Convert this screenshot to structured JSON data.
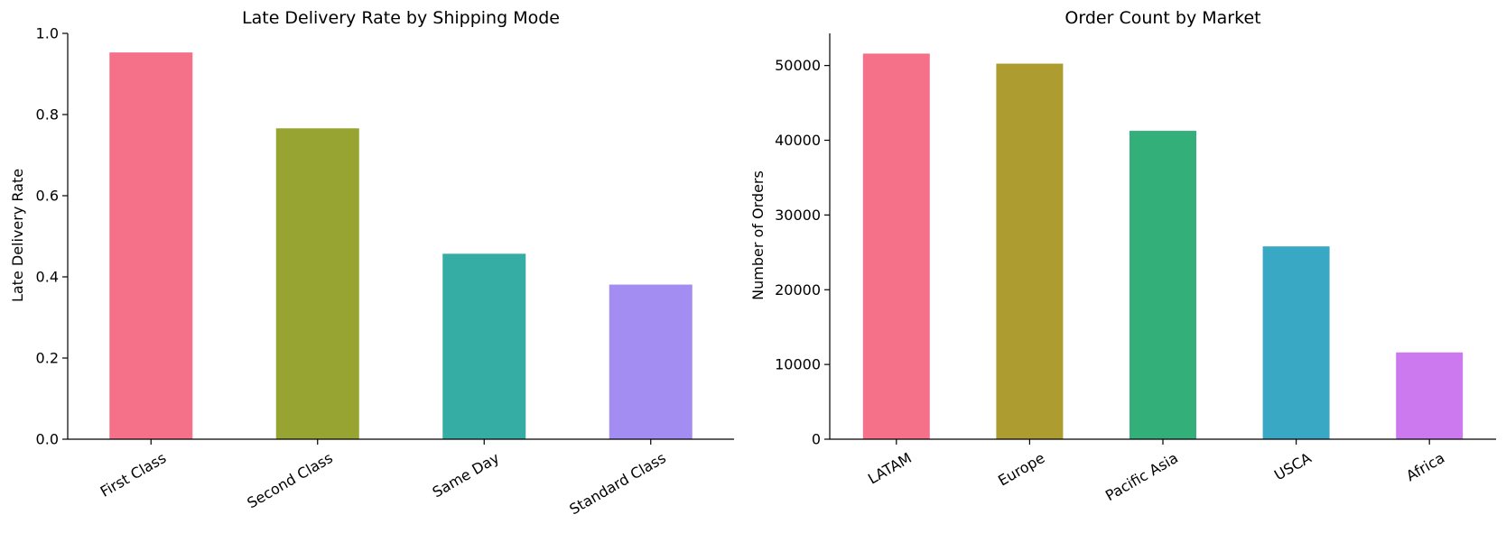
{
  "chart_data": [
    {
      "type": "bar",
      "title": "Late Delivery Rate by Shipping Mode",
      "xlabel": "",
      "ylabel": "Late Delivery Rate",
      "categories": [
        "First Class",
        "Second Class",
        "Same Day",
        "Standard Class"
      ],
      "values": [
        0.953,
        0.766,
        0.457,
        0.381
      ],
      "colors": [
        "#f5718a",
        "#97a431",
        "#36ada4",
        "#a38df2"
      ],
      "ylim": [
        0,
        1.0
      ],
      "yticks": [
        0.0,
        0.2,
        0.4,
        0.6,
        0.8,
        1.0
      ],
      "ytick_labels": [
        "0.0",
        "0.2",
        "0.4",
        "0.6",
        "0.8",
        "1.0"
      ],
      "grid": false,
      "legend": "none"
    },
    {
      "type": "bar",
      "title": "Order Count by Market",
      "xlabel": "",
      "ylabel": "Number of Orders",
      "categories": [
        "LATAM",
        "Europe",
        "Pacific Asia",
        "USCA",
        "Africa"
      ],
      "values": [
        51594,
        50252,
        41260,
        25799,
        11614
      ],
      "colors": [
        "#f5718a",
        "#ad9c30",
        "#33b07a",
        "#38a8c5",
        "#cc79f0"
      ],
      "ylim": [
        0,
        54300
      ],
      "yticks": [
        0,
        10000,
        20000,
        30000,
        40000,
        50000
      ],
      "ytick_labels": [
        "0",
        "10000",
        "20000",
        "30000",
        "40000",
        "50000"
      ],
      "grid": false,
      "legend": "none"
    }
  ]
}
